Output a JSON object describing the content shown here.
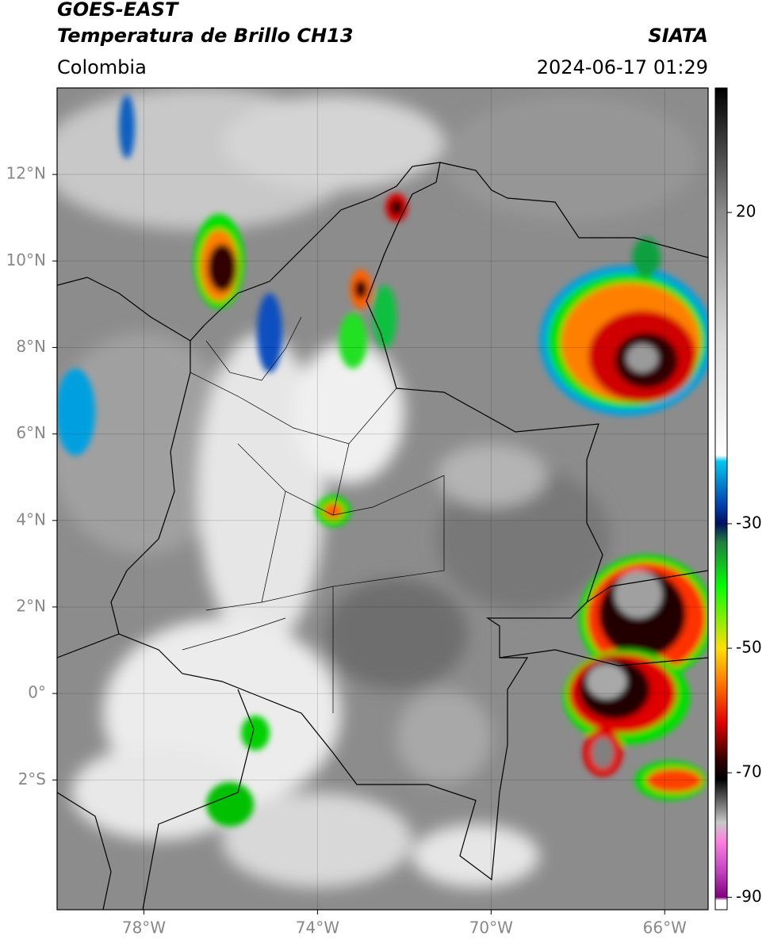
{
  "header": {
    "title": "GOES-EAST",
    "subtitle": "Temperatura de Brillo CH13",
    "region": "Colombia",
    "source": "SIATA",
    "timestamp": "2024-06-17 01:29"
  },
  "map": {
    "xlim": [
      -80,
      -65
    ],
    "ylim": [
      -5,
      14
    ],
    "xticks": [
      {
        "value": -78,
        "label": "78°W"
      },
      {
        "value": -74,
        "label": "74°W"
      },
      {
        "value": -70,
        "label": "70°W"
      },
      {
        "value": -66,
        "label": "66°W"
      }
    ],
    "yticks": [
      {
        "value": -2,
        "label": "2°S"
      },
      {
        "value": 0,
        "label": "0°"
      },
      {
        "value": 2,
        "label": "2°N"
      },
      {
        "value": 4,
        "label": "4°N"
      },
      {
        "value": 6,
        "label": "6°N"
      },
      {
        "value": 8,
        "label": "8°N"
      },
      {
        "value": 10,
        "label": "10°N"
      },
      {
        "value": 12,
        "label": "12°N"
      }
    ],
    "grid": true
  },
  "colorbar": {
    "lim": [
      -92,
      40
    ],
    "ticks": [
      20,
      -30,
      -50,
      -70,
      -90
    ],
    "colormap": [
      [
        40,
        "#000000"
      ],
      [
        20,
        "#8a8a8a"
      ],
      [
        0,
        "#d8d8d8"
      ],
      [
        -19,
        "#ffffff"
      ],
      [
        -20,
        "#00c8f0"
      ],
      [
        -27,
        "#0040b0"
      ],
      [
        -30,
        "#001060"
      ],
      [
        -33,
        "#208040"
      ],
      [
        -40,
        "#00ff00"
      ],
      [
        -50,
        "#ffe000"
      ],
      [
        -56,
        "#ff7000"
      ],
      [
        -62,
        "#e00000"
      ],
      [
        -68,
        "#300000"
      ],
      [
        -71,
        "#000000"
      ],
      [
        -78,
        "#c8c8c8"
      ],
      [
        -81,
        "#ff80e0"
      ],
      [
        -86,
        "#c040c0"
      ],
      [
        -90,
        "#800080"
      ],
      [
        -90.5,
        "#ffffff"
      ],
      [
        -92,
        "#ffffff"
      ]
    ]
  }
}
